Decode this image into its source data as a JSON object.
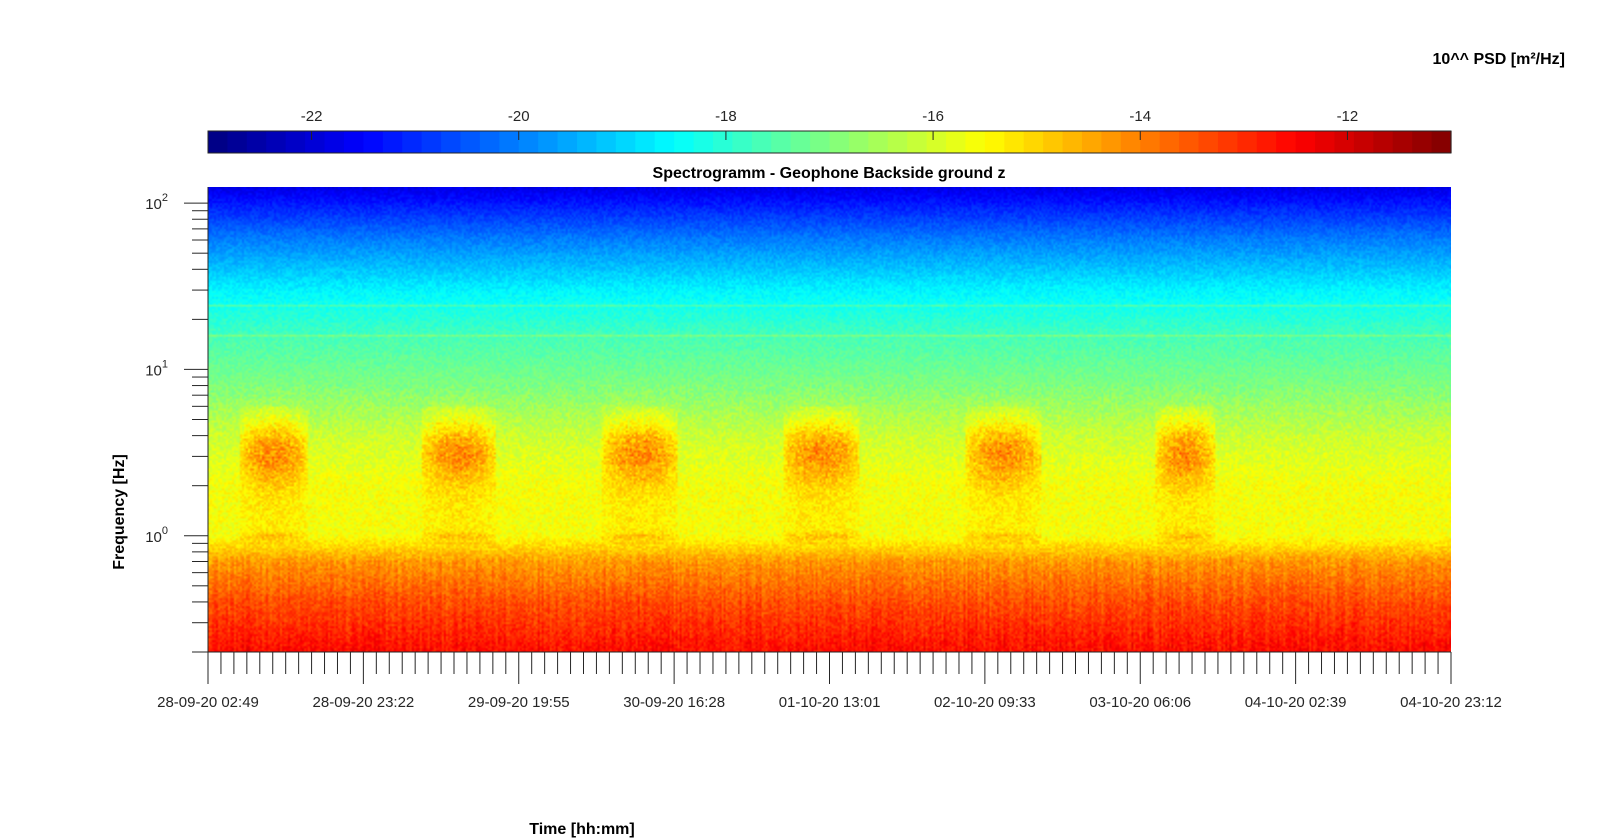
{
  "chart_data": {
    "type": "heatmap",
    "title": "Spectrogramm - Geophone Backside ground z",
    "xlabel": "Time [hh:mm]",
    "ylabel": "Frequency [Hz]",
    "colorbar_label": "10^^ PSD [m²/Hz]",
    "colormap": "jet",
    "yscale": "log",
    "ylim": [
      0.2,
      125
    ],
    "xlim": [
      "28-09-20 02:49",
      "04-10-20 23:12"
    ],
    "clim": [
      -23,
      -11
    ],
    "colorbar_ticks": [
      "-22",
      "-20",
      "-18",
      "-16",
      "-14",
      "-12"
    ],
    "x_tick_labels": [
      "28-09-20 02:49",
      "28-09-20 23:22",
      "29-09-20 19:55",
      "30-09-20 16:28",
      "01-10-20 13:01",
      "02-10-20 09:33",
      "03-10-20 06:06",
      "04-10-20 02:39",
      "04-10-20 23:12"
    ],
    "y_tick_labels": [
      {
        "base": "10",
        "exp": "2",
        "value": 100
      },
      {
        "base": "10",
        "exp": "1",
        "value": 10
      },
      {
        "base": "10",
        "exp": "0",
        "value": 1
      }
    ],
    "psd_profile_log10": [
      {
        "f": 125,
        "psd": -21.8
      },
      {
        "f": 60,
        "psd": -20.0
      },
      {
        "f": 30,
        "psd": -18.6
      },
      {
        "f": 15,
        "psd": -17.6
      },
      {
        "f": 8,
        "psd": -17.0
      },
      {
        "f": 4,
        "psd": -16.1
      },
      {
        "f": 2,
        "psd": -15.6
      },
      {
        "f": 1,
        "psd": -15.6
      },
      {
        "f": 0.7,
        "psd": -14.3
      },
      {
        "f": 0.4,
        "psd": -13.4
      },
      {
        "f": 0.2,
        "psd": -12.6
      }
    ],
    "daytime_activity_bands": [
      {
        "start": "28-09-20 07:00",
        "end": "28-09-20 16:00"
      },
      {
        "start": "29-09-20 07:00",
        "end": "29-09-20 17:00"
      },
      {
        "start": "30-09-20 07:00",
        "end": "30-09-20 17:00"
      },
      {
        "start": "01-10-20 07:00",
        "end": "01-10-20 17:00"
      },
      {
        "start": "02-10-20 07:00",
        "end": "02-10-20 17:00"
      },
      {
        "start": "03-10-20 08:00",
        "end": "03-10-20 16:00"
      }
    ]
  }
}
